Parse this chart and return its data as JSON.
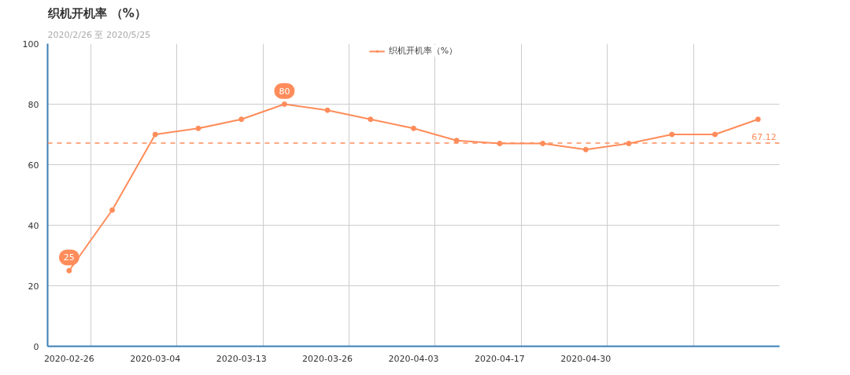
{
  "chart_data": {
    "type": "line",
    "title": "织机开机率 （%）",
    "subtitle": "2020/2/26 至 2020/5/25",
    "categories": [
      "2020-02-26",
      null,
      "2020-03-04",
      null,
      "2020-03-13",
      null,
      "2020-03-26",
      null,
      "2020-04-03",
      null,
      "2020-04-17",
      null,
      "2020-04-30",
      null,
      null,
      null,
      null
    ],
    "series": [
      {
        "name": "织机开机率（%）",
        "color": "#ff8c5a",
        "values": [
          25,
          45,
          70,
          72,
          75,
          80,
          78,
          75,
          72,
          68,
          67,
          67,
          65,
          67,
          70,
          70,
          75
        ]
      }
    ],
    "ylim": [
      0,
      100
    ],
    "yticks": [
      0,
      20,
      40,
      60,
      80,
      100
    ],
    "grid": true,
    "legend": "top",
    "marker": "circle",
    "line_style": "solid",
    "ref_lines": [
      {
        "axis": "y",
        "value": 67.12,
        "label": "67.12",
        "color": "#ff8c5a",
        "line_style": "dashed"
      }
    ],
    "annotations": [
      {
        "text": "25",
        "x": "2020-02-26",
        "y": 25
      },
      {
        "text": "80",
        "y": 80
      }
    ]
  }
}
